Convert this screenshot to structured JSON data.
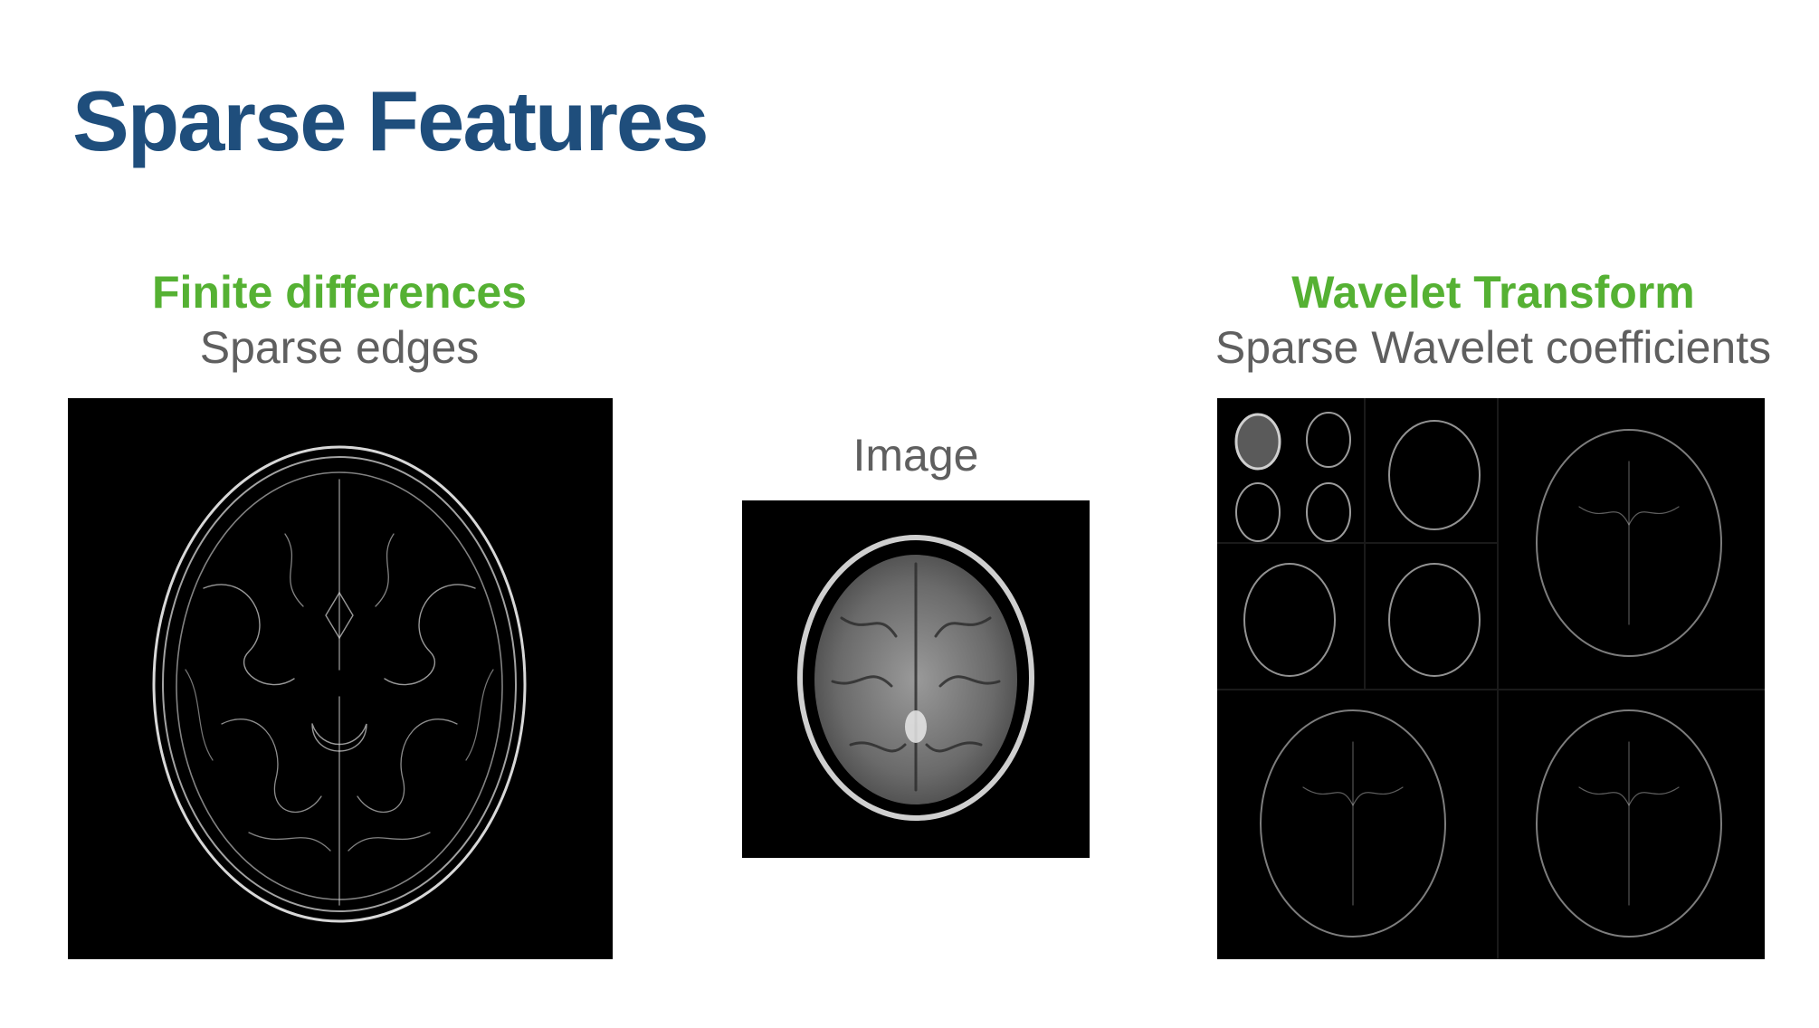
{
  "slide": {
    "title": "Sparse Features"
  },
  "left": {
    "heading": "Finite differences",
    "subheading": "Sparse edges"
  },
  "center": {
    "label": "Image"
  },
  "right": {
    "heading": "Wavelet Transform",
    "subheading": "Sparse Wavelet coefficients"
  }
}
